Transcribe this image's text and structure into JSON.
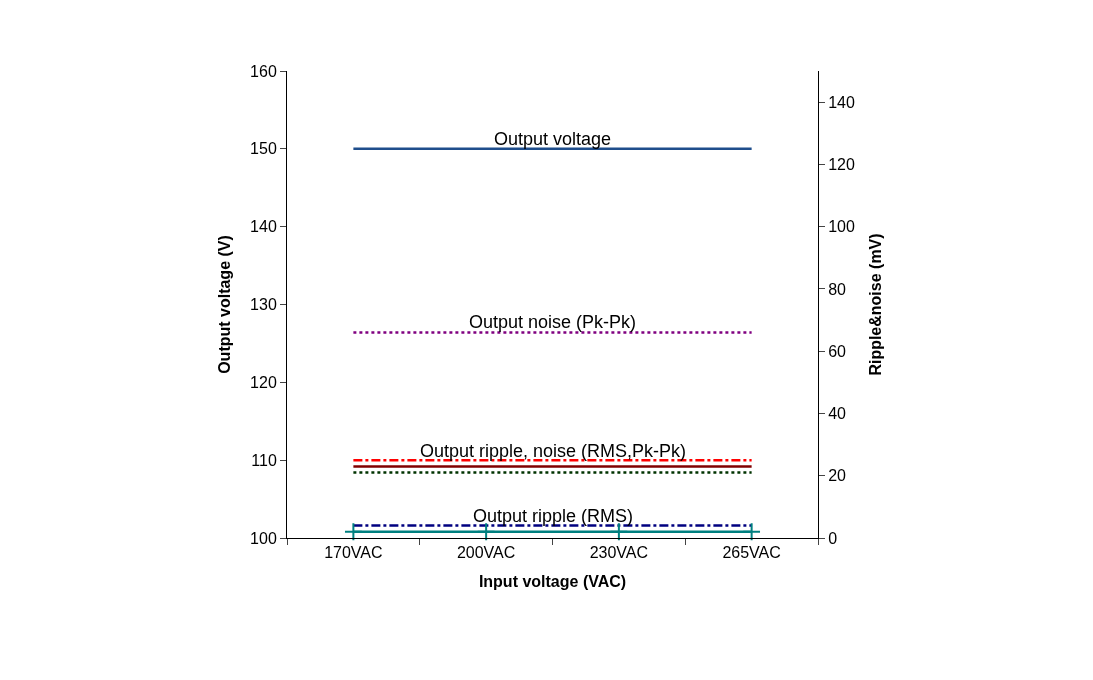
{
  "chart_data": {
    "type": "line",
    "xlabel": "Input voltage (VAC)",
    "ylabel": "Output voltage (V)",
    "y2label": "Ripple&noise (mV)",
    "categories": [
      "170VAC",
      "200VAC",
      "230VAC",
      "265VAC"
    ],
    "series": [
      {
        "color": "#1f4e8c",
        "values": [
          150,
          150,
          150,
          150
        ],
        "line_style": "solid",
        "marker": "none"
      },
      {
        "color": "#800080",
        "values": [
          66,
          66,
          66,
          66
        ],
        "axis": "y2",
        "line_style": "dotted",
        "marker": "none"
      },
      {
        "color": "#ff0000",
        "values": [
          25,
          25,
          25,
          25
        ],
        "axis": "y2",
        "line_style": "dashdot",
        "marker": "none"
      },
      {
        "color": "#800000",
        "values": [
          23,
          23,
          23,
          23
        ],
        "axis": "y2",
        "line_style": "solid",
        "marker": "none"
      },
      {
        "color": "#003300",
        "values": [
          21,
          21,
          21,
          21
        ],
        "axis": "y2",
        "line_style": "dotted",
        "marker": "none"
      },
      {
        "color": "#000080",
        "values": [
          4,
          4,
          4,
          4
        ],
        "axis": "y2",
        "line_style": "dashdot",
        "marker": "none"
      },
      {
        "color": "#008080",
        "values": [
          2,
          2,
          2,
          2
        ],
        "axis": "y2",
        "line_style": "solid",
        "marker": "cross"
      }
    ],
    "ylim": [
      100,
      160
    ],
    "yticks": [
      100,
      110,
      120,
      130,
      140,
      150,
      160
    ],
    "y2lim": [
      0,
      150
    ],
    "y2ticks": [
      0,
      20,
      40,
      60,
      80,
      100,
      120,
      140
    ],
    "annotations": [
      {
        "text": "Output voltage",
        "y": 150
      },
      {
        "text": "Output noise (Pk-Pk)",
        "y": 126.5
      },
      {
        "text": "Output ripple, noise (RMS,Pk-Pk)",
        "y": 109.9
      },
      {
        "text": "Output ripple (RMS)",
        "y": 101.5
      }
    ]
  }
}
